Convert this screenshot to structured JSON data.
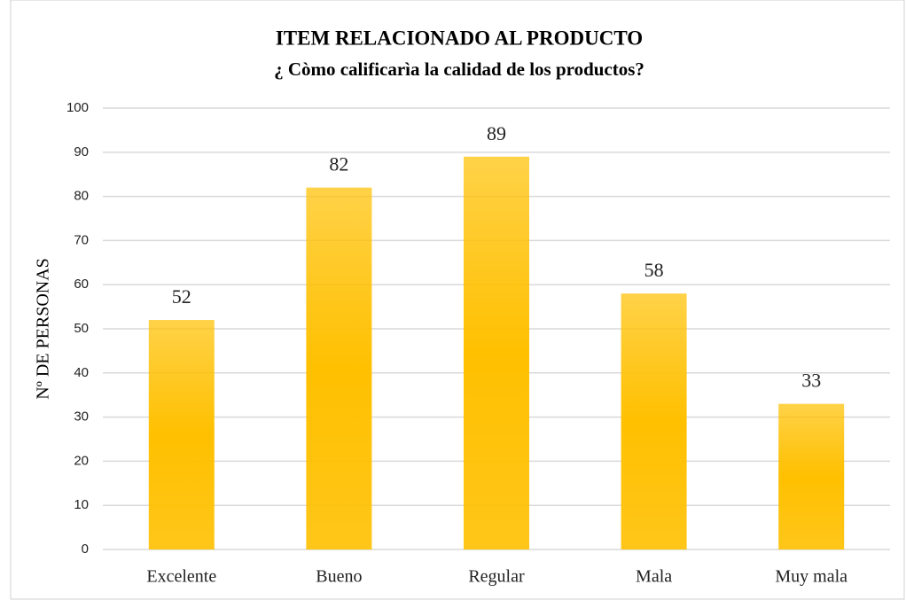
{
  "chart_data": {
    "type": "bar",
    "title": "ITEM RELACIONADO AL PRODUCTO",
    "subtitle": "¿ Còmo calificarìa la calidad de los productos?",
    "y_label": "Nº DE PERSONAS",
    "categories": [
      "Excelente",
      "Bueno",
      "Regular",
      "Mala",
      "Muy mala"
    ],
    "values": [
      52,
      82,
      89,
      58,
      33
    ],
    "color": "#ffc000",
    "ylim": [
      0,
      100
    ],
    "yticks": [
      0,
      10,
      20,
      30,
      40,
      50,
      60,
      70,
      80,
      90,
      100
    ],
    "grid": true
  }
}
